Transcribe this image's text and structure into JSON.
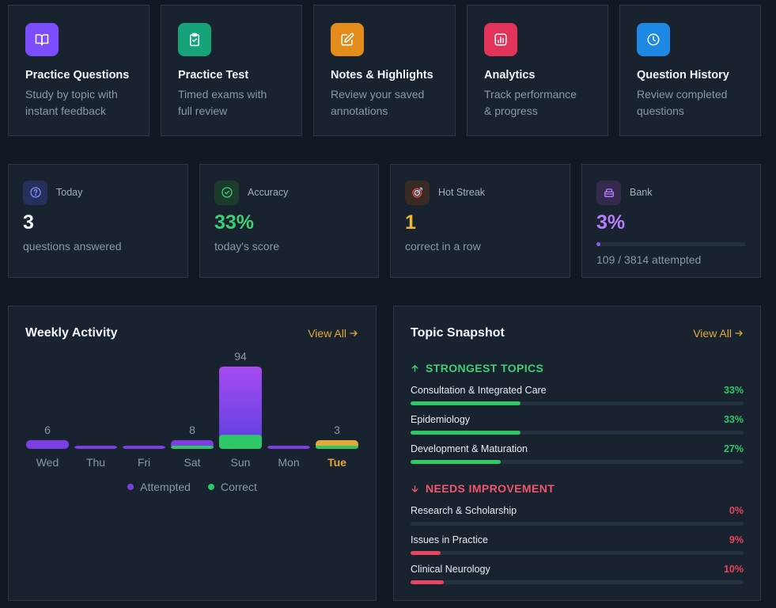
{
  "features": [
    {
      "title": "Practice Questions",
      "desc": [
        "Study by topic with",
        "instant feedback"
      ],
      "icon": "book-icon",
      "color": "#7c4dff"
    },
    {
      "title": "Practice Test",
      "desc": [
        "Timed exams with",
        "full review"
      ],
      "icon": "clipboard-check-icon",
      "color": "#16a37a"
    },
    {
      "title": "Notes & Highlights",
      "desc": [
        "Review your saved",
        "annotations"
      ],
      "icon": "edit-icon",
      "color": "#e38b1b"
    },
    {
      "title": "Analytics",
      "desc": [
        "Track performance",
        "& progress"
      ],
      "icon": "bar-chart-icon",
      "color": "#e2335a"
    },
    {
      "title": "Question History",
      "desc": [
        "Review completed",
        "questions"
      ],
      "icon": "clock-icon",
      "color": "#1e88e5"
    }
  ],
  "stats": {
    "today": {
      "label": "Today",
      "value": "3",
      "sub": "questions answered",
      "icon": "question-circle-icon",
      "color": "#7f8cff"
    },
    "accuracy": {
      "label": "Accuracy",
      "value": "33%",
      "sub": "today's score",
      "icon": "check-circle-icon",
      "color": "#3ecf74"
    },
    "streak": {
      "label": "Hot Streak",
      "value": "1",
      "sub": "correct in a row",
      "icon": "target-icon",
      "color": "#f0b43c"
    },
    "bank": {
      "label": "Bank",
      "value": "3%",
      "sub": "109 / 3814 attempted",
      "icon": "database-icon",
      "color": "#b77dff",
      "progress": 0.029
    }
  },
  "weekly": {
    "title": "Weekly Activity",
    "view_all": "View All",
    "legend": {
      "attempted": "Attempted",
      "correct": "Correct"
    },
    "colors": {
      "attempted": "#7b3fe4",
      "correct": "#2ec866",
      "today": "#e3a83a"
    },
    "chart_data": {
      "type": "bar",
      "categories": [
        "Wed",
        "Thu",
        "Fri",
        "Sat",
        "Sun",
        "Mon",
        "Tue"
      ],
      "series": [
        {
          "name": "Attempted",
          "values": [
            6,
            0,
            0,
            8,
            94,
            0,
            3
          ]
        },
        {
          "name": "Correct",
          "values": [
            0,
            0,
            0,
            3,
            16,
            0,
            1
          ]
        }
      ],
      "value_labels": [
        "6",
        "",
        "",
        "8",
        "94",
        "",
        "3"
      ],
      "highlight": "Tue"
    }
  },
  "topics": {
    "title": "Topic Snapshot",
    "view_all": "View All",
    "strongest_label": "STRONGEST TOPICS",
    "needs_label": "NEEDS IMPROVEMENT",
    "strongest": [
      {
        "name": "Consultation & Integrated Care",
        "pct": "33%",
        "value": 33
      },
      {
        "name": "Epidemiology",
        "pct": "33%",
        "value": 33
      },
      {
        "name": "Development & Maturation",
        "pct": "27%",
        "value": 27
      }
    ],
    "needs": [
      {
        "name": "Research & Scholarship",
        "pct": "0%",
        "value": 0
      },
      {
        "name": "Issues in Practice",
        "pct": "9%",
        "value": 9
      },
      {
        "name": "Clinical Neurology",
        "pct": "10%",
        "value": 10
      }
    ]
  }
}
